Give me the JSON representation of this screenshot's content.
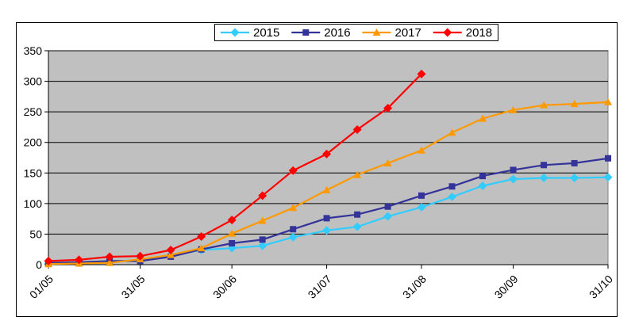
{
  "chart_data": {
    "type": "line",
    "title": "",
    "xlabel": "",
    "ylabel": "",
    "x_ticks": [
      "01/05",
      "31/05",
      "30/06",
      "31/07",
      "31/08",
      "30/09",
      "31/10"
    ],
    "ylim": [
      0,
      350
    ],
    "y_ticks": [
      0,
      50,
      100,
      150,
      200,
      250,
      300,
      350
    ],
    "grid": "horizontal",
    "legend_position": "top",
    "plot_background": "#c0c0c0",
    "series": [
      {
        "name": "2015",
        "color": "#33ccff",
        "marker": "diamond",
        "points": [
          {
            "x": "01/05",
            "y": 2
          },
          {
            "x": "11/05",
            "y": 3
          },
          {
            "x": "21/05",
            "y": 5
          },
          {
            "x": "31/05",
            "y": 8
          },
          {
            "x": "10/06",
            "y": 15
          },
          {
            "x": "20/06",
            "y": 24
          },
          {
            "x": "30/06",
            "y": 27
          },
          {
            "x": "10/07",
            "y": 31
          },
          {
            "x": "20/07",
            "y": 45
          },
          {
            "x": "31/07",
            "y": 56
          },
          {
            "x": "10/08",
            "y": 62
          },
          {
            "x": "20/08",
            "y": 79
          },
          {
            "x": "31/08",
            "y": 94
          },
          {
            "x": "10/09",
            "y": 111
          },
          {
            "x": "20/09",
            "y": 129
          },
          {
            "x": "30/09",
            "y": 140
          },
          {
            "x": "10/10",
            "y": 142
          },
          {
            "x": "20/10",
            "y": 142
          },
          {
            "x": "31/10",
            "y": 143
          }
        ]
      },
      {
        "name": "2016",
        "color": "#333399",
        "marker": "square",
        "points": [
          {
            "x": "01/05",
            "y": 3
          },
          {
            "x": "11/05",
            "y": 4
          },
          {
            "x": "21/05",
            "y": 6
          },
          {
            "x": "31/05",
            "y": 6
          },
          {
            "x": "10/06",
            "y": 13
          },
          {
            "x": "20/06",
            "y": 25
          },
          {
            "x": "30/06",
            "y": 35
          },
          {
            "x": "10/07",
            "y": 41
          },
          {
            "x": "20/07",
            "y": 58
          },
          {
            "x": "31/07",
            "y": 76
          },
          {
            "x": "10/08",
            "y": 82
          },
          {
            "x": "20/08",
            "y": 95
          },
          {
            "x": "31/08",
            "y": 113
          },
          {
            "x": "10/09",
            "y": 128
          },
          {
            "x": "20/09",
            "y": 145
          },
          {
            "x": "30/09",
            "y": 155
          },
          {
            "x": "10/10",
            "y": 163
          },
          {
            "x": "20/10",
            "y": 166
          },
          {
            "x": "31/10",
            "y": 174
          }
        ]
      },
      {
        "name": "2017",
        "color": "#ff9900",
        "marker": "triangle",
        "points": [
          {
            "x": "01/05",
            "y": 1
          },
          {
            "x": "11/05",
            "y": 2
          },
          {
            "x": "21/05",
            "y": 3
          },
          {
            "x": "31/05",
            "y": 9
          },
          {
            "x": "10/06",
            "y": 16
          },
          {
            "x": "20/06",
            "y": 27
          },
          {
            "x": "30/06",
            "y": 51
          },
          {
            "x": "10/07",
            "y": 72
          },
          {
            "x": "20/07",
            "y": 93
          },
          {
            "x": "31/07",
            "y": 122
          },
          {
            "x": "10/08",
            "y": 147
          },
          {
            "x": "20/08",
            "y": 166
          },
          {
            "x": "31/08",
            "y": 187
          },
          {
            "x": "10/09",
            "y": 216
          },
          {
            "x": "20/09",
            "y": 239
          },
          {
            "x": "30/09",
            "y": 253
          },
          {
            "x": "10/10",
            "y": 261
          },
          {
            "x": "20/10",
            "y": 263
          },
          {
            "x": "31/10",
            "y": 266
          }
        ]
      },
      {
        "name": "2018",
        "color": "#ff0000",
        "marker": "diamond",
        "points": [
          {
            "x": "01/05",
            "y": 6
          },
          {
            "x": "11/05",
            "y": 8
          },
          {
            "x": "21/05",
            "y": 13
          },
          {
            "x": "31/05",
            "y": 14
          },
          {
            "x": "10/06",
            "y": 24
          },
          {
            "x": "20/06",
            "y": 46
          },
          {
            "x": "30/06",
            "y": 73
          },
          {
            "x": "10/07",
            "y": 113
          },
          {
            "x": "20/07",
            "y": 154
          },
          {
            "x": "31/07",
            "y": 181
          },
          {
            "x": "10/08",
            "y": 221
          },
          {
            "x": "20/08",
            "y": 256
          },
          {
            "x": "31/08",
            "y": 312
          }
        ]
      }
    ]
  }
}
